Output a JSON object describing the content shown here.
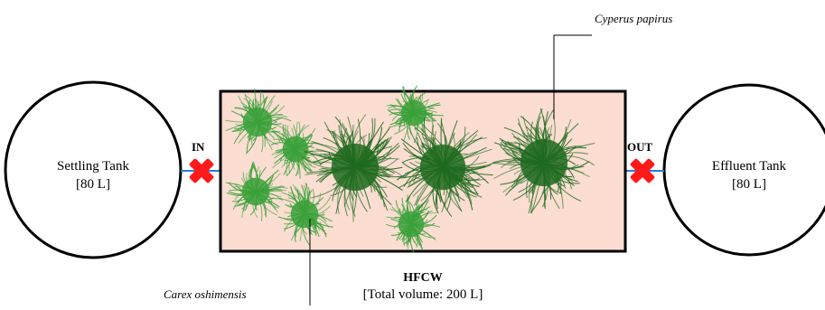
{
  "settling_tank": {
    "name": "Settling Tank",
    "volume": "[80 L]"
  },
  "effluent_tank": {
    "name": "Effluent Tank",
    "volume": "[80 L]"
  },
  "inlet": {
    "label": "IN"
  },
  "outlet": {
    "label": "OUT"
  },
  "wetland": {
    "name": "HFCW",
    "volume": "[Total volume: 200 L]",
    "fill_color": "#fbddd2"
  },
  "plants": {
    "tall": {
      "name": "Cyperus papirus",
      "color": "#1f6b1f"
    },
    "small": {
      "name": "Carex oshimensis",
      "color": "#3aa13a"
    }
  },
  "colors": {
    "valve": "#ff1a1a",
    "pipe": "#2b7bd6"
  }
}
